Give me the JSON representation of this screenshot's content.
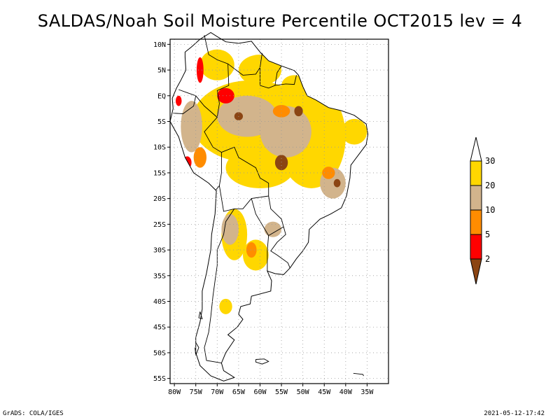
{
  "title": "SALDAS/Noah Soil Moisture Percentile OCT2015 lev = 4",
  "footer": {
    "left": "GrADS: COLA/IGES",
    "right": "2021-05-12-17:42"
  },
  "map": {
    "lon_range": [
      -81,
      -30
    ],
    "lat_range": [
      -56,
      11
    ],
    "lat_ticks": [
      {
        "v": 10,
        "label": "10N"
      },
      {
        "v": 5,
        "label": "5N"
      },
      {
        "v": 0,
        "label": "EQ"
      },
      {
        "v": -5,
        "label": "5S"
      },
      {
        "v": -10,
        "label": "10S"
      },
      {
        "v": -15,
        "label": "15S"
      },
      {
        "v": -20,
        "label": "20S"
      },
      {
        "v": -25,
        "label": "25S"
      },
      {
        "v": -30,
        "label": "30S"
      },
      {
        "v": -35,
        "label": "35S"
      },
      {
        "v": -40,
        "label": "40S"
      },
      {
        "v": -45,
        "label": "45S"
      },
      {
        "v": -50,
        "label": "50S"
      },
      {
        "v": -55,
        "label": "55S"
      }
    ],
    "lon_ticks": [
      {
        "v": -80,
        "label": "80W"
      },
      {
        "v": -75,
        "label": "75W"
      },
      {
        "v": -70,
        "label": "70W"
      },
      {
        "v": -65,
        "label": "65W"
      },
      {
        "v": -60,
        "label": "60W"
      },
      {
        "v": -55,
        "label": "55W"
      },
      {
        "v": -50,
        "label": "50W"
      },
      {
        "v": -45,
        "label": "45W"
      },
      {
        "v": -40,
        "label": "40W"
      },
      {
        "v": -35,
        "label": "35W"
      }
    ],
    "gridlines": true
  },
  "legend": {
    "labels": [
      "30",
      "20",
      "10",
      "5",
      "2"
    ],
    "colors": {
      "above": "#ffffff",
      "c20_30": "#ffd700",
      "c10_20": "#d2b48c",
      "c5_10": "#ff8c00",
      "c2_5": "#ff0000",
      "below": "#8b4513"
    }
  },
  "regions": [
    {
      "cls": "c20_30",
      "lon": -62,
      "lat": -5,
      "rlon": 14,
      "rlat": 8
    },
    {
      "cls": "c20_30",
      "lon": -48,
      "lat": -8,
      "rlon": 8,
      "rlat": 10
    },
    {
      "cls": "c20_30",
      "lon": -60,
      "lat": -14,
      "rlon": 8,
      "rlat": 4
    },
    {
      "cls": "c20_30",
      "lon": -70,
      "lat": 6,
      "rlon": 4,
      "rlat": 3
    },
    {
      "cls": "c20_30",
      "lon": -60,
      "lat": 5,
      "rlon": 5,
      "rlat": 3
    },
    {
      "cls": "c20_30",
      "lon": -52,
      "lat": 2,
      "rlon": 3,
      "rlat": 2
    },
    {
      "cls": "c20_30",
      "lon": -38,
      "lat": -7,
      "rlon": 3,
      "rlat": 2.5
    },
    {
      "cls": "c20_30",
      "lon": -66,
      "lat": -27,
      "rlon": 3,
      "rlat": 5
    },
    {
      "cls": "c20_30",
      "lon": -61,
      "lat": -31,
      "rlon": 3,
      "rlat": 3
    },
    {
      "cls": "c20_30",
      "lon": -68,
      "lat": -41,
      "rlon": 1.5,
      "rlat": 1.5
    },
    {
      "cls": "c10_20",
      "lon": -63,
      "lat": -4,
      "rlon": 7,
      "rlat": 4
    },
    {
      "cls": "c10_20",
      "lon": -54,
      "lat": -7,
      "rlon": 6,
      "rlat": 5
    },
    {
      "cls": "c10_20",
      "lon": -43,
      "lat": -17,
      "rlon": 3,
      "rlat": 3
    },
    {
      "cls": "c10_20",
      "lon": -76,
      "lat": -6,
      "rlon": 2.5,
      "rlat": 5
    },
    {
      "cls": "c10_20",
      "lon": -67,
      "lat": -26,
      "rlon": 2,
      "rlat": 3
    },
    {
      "cls": "c10_20",
      "lon": -57,
      "lat": -26,
      "rlon": 2,
      "rlat": 1.5
    },
    {
      "cls": "c5_10",
      "lon": -74,
      "lat": -12,
      "rlon": 1.5,
      "rlat": 2
    },
    {
      "cls": "c5_10",
      "lon": -62,
      "lat": -30,
      "rlon": 1.2,
      "rlat": 1.5
    },
    {
      "cls": "c5_10",
      "lon": -55,
      "lat": -3,
      "rlon": 2,
      "rlat": 1.2
    },
    {
      "cls": "c5_10",
      "lon": -44,
      "lat": -15,
      "rlon": 1.5,
      "rlat": 1.2
    },
    {
      "cls": "c2_5",
      "lon": -68,
      "lat": 0,
      "rlon": 2,
      "rlat": 1.5
    },
    {
      "cls": "c2_5",
      "lon": -74,
      "lat": 5,
      "rlon": 0.8,
      "rlat": 2.5
    },
    {
      "cls": "c2_5",
      "lon": -77,
      "lat": -13,
      "rlon": 1,
      "rlat": 1.2
    },
    {
      "cls": "c2_5",
      "lon": -79,
      "lat": -1,
      "rlon": 0.7,
      "rlat": 1
    },
    {
      "cls": "below",
      "lon": -55,
      "lat": -13,
      "rlon": 1.5,
      "rlat": 1.5
    },
    {
      "cls": "below",
      "lon": -51,
      "lat": -3,
      "rlon": 1,
      "rlat": 1
    },
    {
      "cls": "below",
      "lon": -65,
      "lat": -4,
      "rlon": 1,
      "rlat": 0.8
    },
    {
      "cls": "below",
      "lon": -42,
      "lat": -17,
      "rlon": 0.8,
      "rlat": 0.8
    }
  ]
}
